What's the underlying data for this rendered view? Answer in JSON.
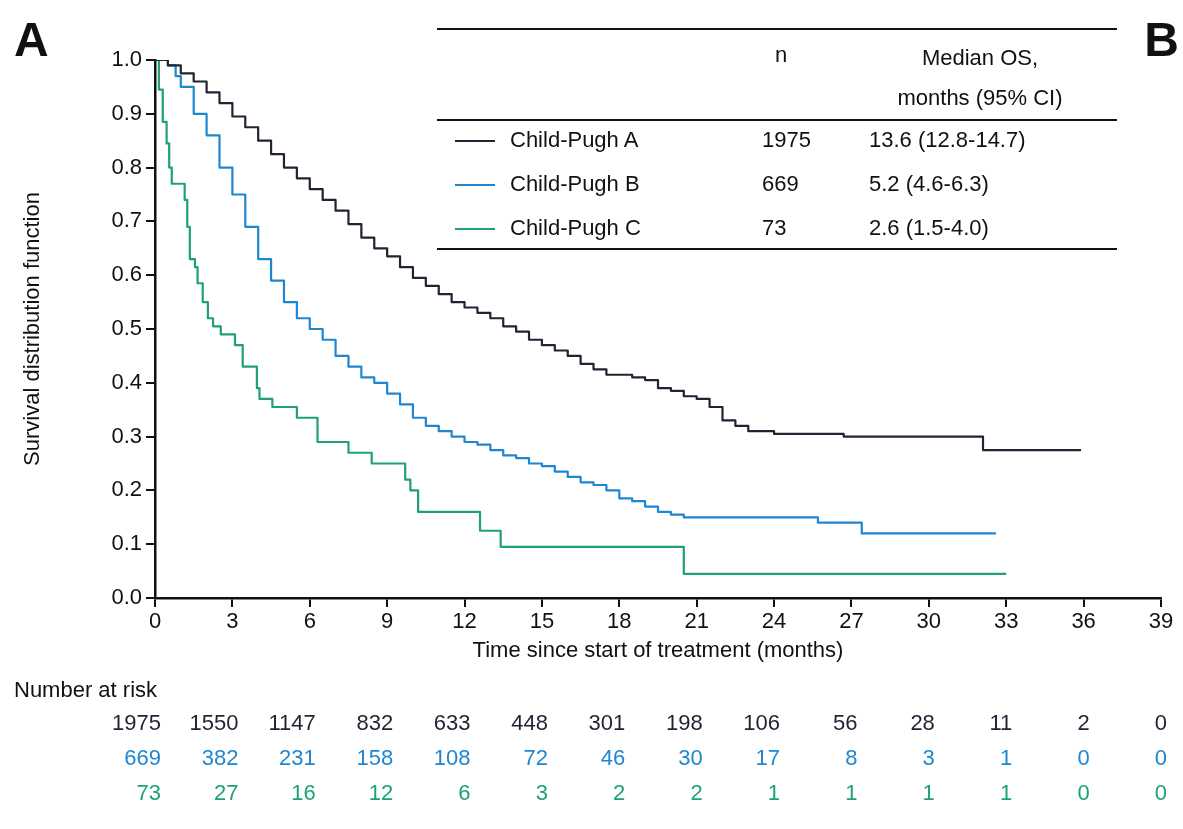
{
  "chart_data": {
    "type": "step",
    "xlabel": "Time since start of treatment (months)",
    "ylabel": "Survival distribution function",
    "xlim": [
      0,
      39
    ],
    "xticks": [
      0,
      3,
      6,
      9,
      12,
      15,
      18,
      21,
      24,
      27,
      30,
      33,
      36,
      39
    ],
    "ylim": [
      0,
      1
    ],
    "yticks": [
      {
        "value": 0,
        "label": "0.0"
      },
      {
        "value": 0.1,
        "label": "0.1"
      },
      {
        "value": 0.2,
        "label": "0.2"
      },
      {
        "value": 0.3,
        "label": "0.3"
      },
      {
        "value": 0.4,
        "label": "0.4"
      },
      {
        "value": 0.5,
        "label": "0.5"
      },
      {
        "value": 0.6,
        "label": "0.6"
      },
      {
        "value": 0.7,
        "label": "0.7"
      },
      {
        "value": 0.8,
        "label": "0.8"
      },
      {
        "value": 0.9,
        "label": "0.9"
      },
      {
        "value": 1,
        "label": "1.0"
      }
    ],
    "grid": false,
    "legend": "top",
    "marker": "none",
    "line_style": "solid",
    "series": [
      {
        "name": "Child-Pugh A",
        "color": "#1f2433",
        "x": [
          0,
          0.5,
          1,
          1.5,
          2,
          2.5,
          3,
          3.5,
          4,
          4.5,
          5,
          5.5,
          6,
          6.5,
          7,
          7.5,
          8,
          8.5,
          9,
          9.5,
          10,
          10.5,
          11,
          11.5,
          12,
          12.5,
          13,
          13.5,
          14,
          14.5,
          15,
          15.5,
          16,
          16.5,
          17,
          17.5,
          18.5,
          19,
          19.5,
          20,
          20.5,
          21,
          21.5,
          22,
          22.5,
          23,
          24,
          26.7,
          32.1,
          35.9
        ],
        "values": [
          1,
          0.99,
          0.975,
          0.96,
          0.94,
          0.92,
          0.895,
          0.875,
          0.85,
          0.825,
          0.8,
          0.78,
          0.76,
          0.74,
          0.72,
          0.695,
          0.67,
          0.65,
          0.635,
          0.615,
          0.595,
          0.58,
          0.565,
          0.55,
          0.54,
          0.53,
          0.52,
          0.505,
          0.495,
          0.48,
          0.47,
          0.46,
          0.45,
          0.435,
          0.425,
          0.415,
          0.41,
          0.405,
          0.39,
          0.385,
          0.375,
          0.37,
          0.355,
          0.33,
          0.32,
          0.31,
          0.305,
          0.3,
          0.275,
          0.275
        ]
      },
      {
        "name": "Child-Pugh B",
        "color": "#1f86d0",
        "x": [
          0,
          0.5,
          0.8,
          1,
          1.5,
          2,
          2.5,
          3,
          3.5,
          4,
          4.5,
          5,
          5.5,
          6,
          6.5,
          7,
          7.5,
          8,
          8.5,
          9,
          9.5,
          10,
          10.5,
          11,
          11.5,
          12,
          12.5,
          13,
          13.5,
          14,
          14.5,
          15,
          15.5,
          16,
          16.5,
          17,
          17.5,
          18,
          18.5,
          19,
          19.5,
          20,
          20.5,
          25.7,
          27.4,
          32.6
        ],
        "values": [
          1,
          0.99,
          0.97,
          0.95,
          0.9,
          0.86,
          0.8,
          0.75,
          0.69,
          0.63,
          0.59,
          0.55,
          0.52,
          0.5,
          0.48,
          0.45,
          0.43,
          0.41,
          0.4,
          0.38,
          0.36,
          0.335,
          0.32,
          0.31,
          0.3,
          0.29,
          0.285,
          0.275,
          0.265,
          0.26,
          0.25,
          0.245,
          0.235,
          0.225,
          0.215,
          0.21,
          0.2,
          0.185,
          0.18,
          0.17,
          0.16,
          0.155,
          0.15,
          0.14,
          0.12,
          0.12
        ]
      },
      {
        "name": "Child-Pugh C",
        "color": "#1fa07a",
        "x": [
          0,
          0.15,
          0.3,
          0.45,
          0.55,
          0.65,
          1.15,
          1.25,
          1.35,
          1.55,
          1.65,
          1.85,
          2.05,
          2.25,
          2.55,
          3.1,
          3.4,
          3.95,
          4.05,
          4.55,
          5.5,
          6.3,
          7.5,
          8.4,
          9.7,
          9.9,
          10.2,
          12.6,
          13.4,
          20.5,
          33
        ],
        "values": [
          1,
          0.945,
          0.885,
          0.845,
          0.8,
          0.77,
          0.74,
          0.69,
          0.63,
          0.615,
          0.585,
          0.55,
          0.52,
          0.505,
          0.49,
          0.47,
          0.43,
          0.39,
          0.37,
          0.355,
          0.335,
          0.29,
          0.27,
          0.25,
          0.22,
          0.2,
          0.16,
          0.125,
          0.095,
          0.045,
          0.045
        ]
      }
    ],
    "annotations": [
      "A",
      "B",
      "n",
      "Median OS, months (95% CI)",
      "1975",
      "13.6 (12.8-14.7)",
      "669",
      "5.2 (4.6-6.3)",
      "73",
      "2.6 (1.5-4.0)",
      "Number at risk",
      "1975 1550 1147 832 633 448 301 198 106 56 28 11 2 0",
      "669 382 231 158 108 72 46 30 17 8 3 1 0 0",
      "73 27 16 12 6 3 2 2 1 1 1 1 0 0"
    ]
  }
}
